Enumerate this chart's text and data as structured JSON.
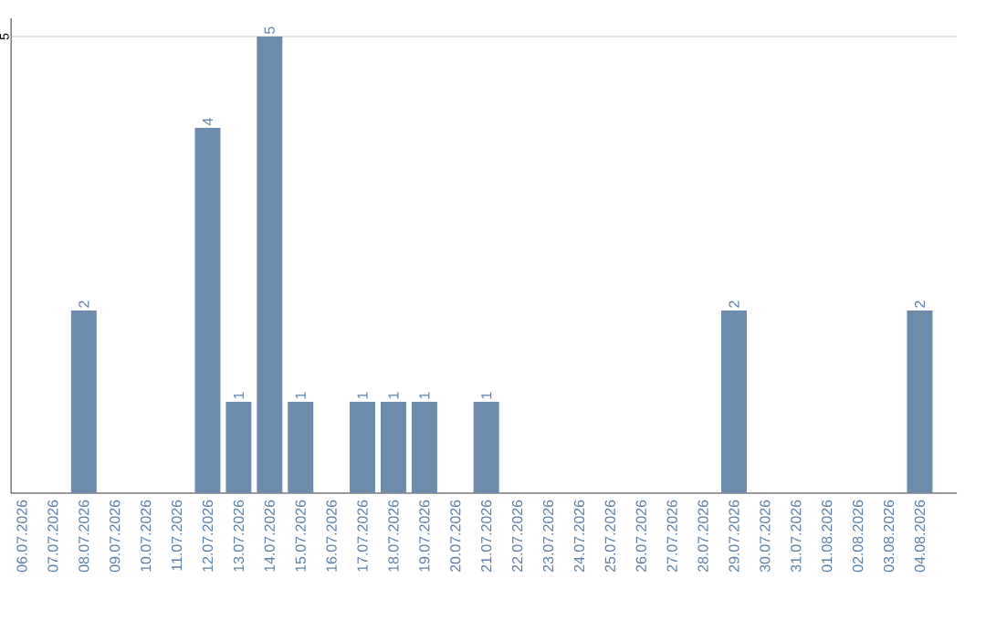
{
  "chart_data": {
    "type": "bar",
    "categories": [
      "06.07.2026",
      "07.07.2026",
      "08.07.2026",
      "09.07.2026",
      "10.07.2026",
      "11.07.2026",
      "12.07.2026",
      "13.07.2026",
      "14.07.2026",
      "15.07.2026",
      "16.07.2026",
      "17.07.2026",
      "18.07.2026",
      "19.07.2026",
      "20.07.2026",
      "21.07.2026",
      "22.07.2026",
      "23.07.2026",
      "24.07.2026",
      "25.07.2026",
      "26.07.2026",
      "27.07.2026",
      "28.07.2026",
      "29.07.2026",
      "30.07.2026",
      "31.07.2026",
      "01.08.2026",
      "02.08.2026",
      "03.08.2026",
      "04.08.2026"
    ],
    "values": [
      0,
      0,
      2,
      0,
      0,
      0,
      4,
      1,
      5,
      1,
      0,
      1,
      1,
      1,
      0,
      1,
      0,
      0,
      0,
      0,
      0,
      0,
      0,
      2,
      0,
      0,
      0,
      0,
      0,
      2
    ],
    "value_labels": [
      null,
      null,
      "2",
      null,
      null,
      null,
      "4",
      "1",
      "5",
      "1",
      null,
      "1",
      "1",
      "1",
      null,
      "1",
      null,
      null,
      null,
      null,
      null,
      null,
      null,
      "2",
      null,
      null,
      null,
      null,
      null,
      "2"
    ],
    "color": "#6d8cac",
    "ylim": [
      0,
      5.2
    ],
    "yticks": [
      5
    ],
    "grid": "y"
  }
}
